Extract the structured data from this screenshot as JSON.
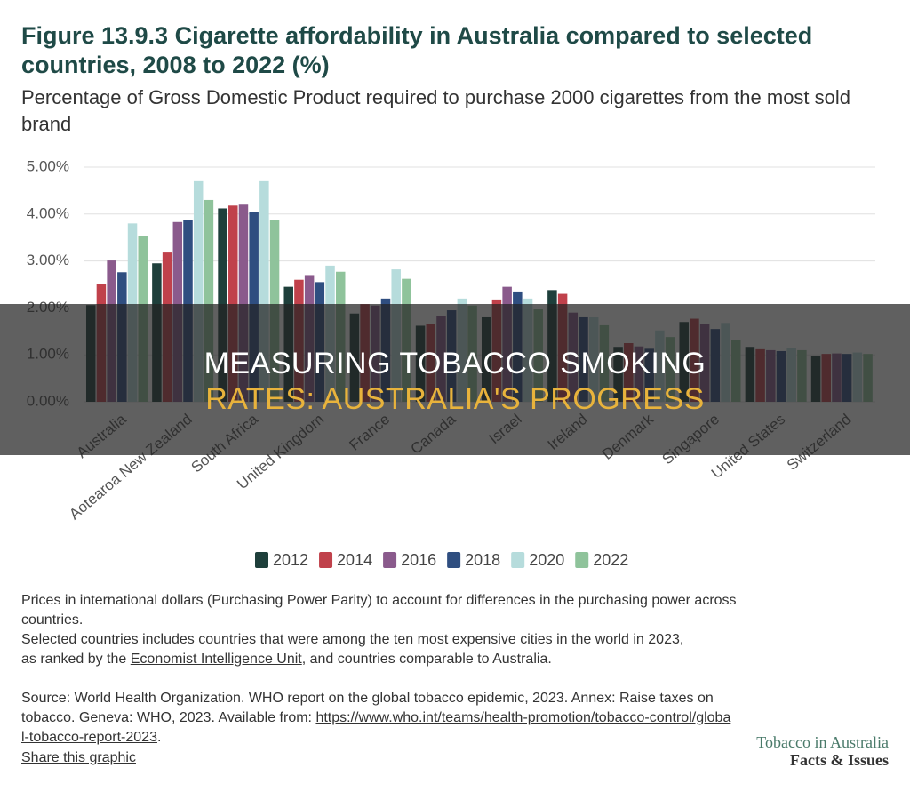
{
  "chart_data": {
    "type": "bar",
    "title": "Figure 13.9.3 Cigarette affordability in Australia compared to selected countries, 2008 to 2022 (%)",
    "subtitle": "Percentage of Gross Domestic Product required to purchase 2000 cigarettes from the most sold brand",
    "categories": [
      "Australia",
      "Aotearoa New Zealand",
      "South Africa",
      "United Kingdom",
      "France",
      "Canada",
      "Israel",
      "Ireland",
      "Denmark",
      "Singapore",
      "United States",
      "Switzerland"
    ],
    "series": [
      {
        "name": "2012",
        "color": "#1e3f3b",
        "values": [
          2.06,
          2.95,
          4.12,
          2.45,
          1.88,
          1.62,
          1.8,
          2.38,
          1.17,
          1.7,
          1.17,
          0.98
        ]
      },
      {
        "name": "2014",
        "color": "#c0414b",
        "values": [
          2.5,
          3.18,
          4.18,
          2.6,
          2.08,
          1.65,
          2.18,
          2.3,
          1.25,
          1.77,
          1.12,
          1.02
        ]
      },
      {
        "name": "2016",
        "color": "#8a5a8c",
        "values": [
          3.01,
          3.83,
          4.2,
          2.7,
          2.05,
          1.83,
          2.45,
          1.9,
          1.18,
          1.65,
          1.1,
          1.03
        ]
      },
      {
        "name": "2018",
        "color": "#2f4e80",
        "values": [
          2.76,
          3.87,
          4.05,
          2.55,
          2.2,
          1.95,
          2.35,
          1.8,
          1.13,
          1.55,
          1.08,
          1.02
        ]
      },
      {
        "name": "2020",
        "color": "#b6dcdc",
        "values": [
          3.8,
          4.7,
          4.7,
          2.9,
          2.82,
          2.2,
          2.2,
          1.8,
          1.52,
          1.68,
          1.15,
          1.05
        ]
      },
      {
        "name": "2022",
        "color": "#8fc39b",
        "values": [
          3.54,
          4.3,
          3.88,
          2.77,
          2.62,
          2.05,
          1.97,
          1.63,
          1.38,
          1.32,
          1.1,
          1.02
        ]
      }
    ],
    "ylim": [
      0,
      5
    ],
    "yticks": [
      {
        "value": 0,
        "label": "0.00%"
      },
      {
        "value": 1,
        "label": "1.00%"
      },
      {
        "value": 2,
        "label": "2.00%"
      },
      {
        "value": 3,
        "label": "3.00%"
      },
      {
        "value": 4,
        "label": "4.00%"
      },
      {
        "value": 5,
        "label": "5.00%"
      }
    ],
    "grid": true
  },
  "notes": {
    "line1": "Prices in international dollars (Purchasing Power Parity) to account for differences in the purchasing power across countries.",
    "line2": "Selected countries includes countries that were among the ten most expensive cities in the world in 2023,",
    "line3_pre": "as ranked by the ",
    "line3_link": "Economist Intelligence Unit",
    "line3_post": ", and countries comparable to Australia."
  },
  "source": {
    "text": "Source: World Health Organization. WHO report on the global tobacco epidemic, 2023. Annex: Raise taxes on tobacco. Geneva: WHO, 2023. Available from: ",
    "link": "https://www.who.int/teams/health-promotion/tobacco-control/global-tobacco-report-2023",
    "end": ".",
    "share": "Share this graphic"
  },
  "logo": {
    "line1": "Tobacco in Australia",
    "line2": "Facts & Issues"
  },
  "banner": {
    "lines": [
      "MEASURING TOBACCO SMOKING",
      "RATES: AUSTRALIA'S PROGRESS"
    ]
  }
}
